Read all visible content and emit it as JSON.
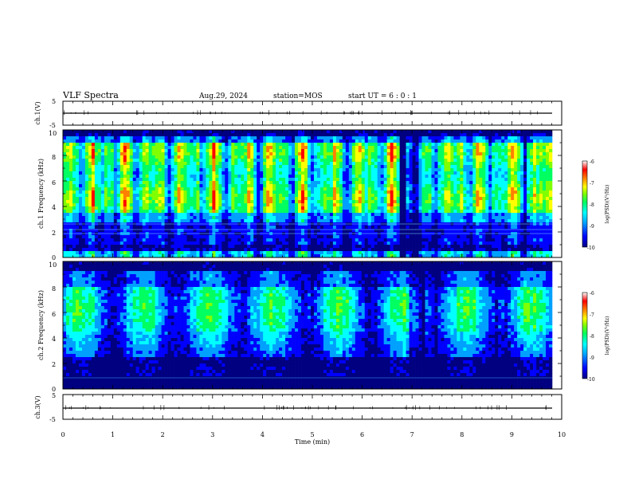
{
  "header": {
    "title": "VLF Spectra",
    "date": "Aug.29, 2024",
    "station": "station=MOS",
    "start_ut": "start UT = 6 : 0 : 1"
  },
  "chart_data": [
    {
      "type": "line",
      "name": "ch1-voltage",
      "ylabel": "ch.1(V)",
      "ylim": [
        -5,
        5
      ],
      "y_ticks": [
        "5",
        "-5"
      ],
      "xlim": [
        0,
        10
      ],
      "description_values": {
        "baseline": 0.0
      }
    },
    {
      "type": "heatmap",
      "name": "ch1-spectrogram",
      "ylabel": "ch.1 Frequency (kHz)",
      "ylim": [
        0,
        10
      ],
      "y_ticks": [
        "0",
        "2",
        "4",
        "6",
        "8",
        "10"
      ],
      "xlim": [
        0,
        10
      ],
      "colorbar": {
        "label": "log(PSD)(V²/Hz)",
        "range": [
          -10,
          -6
        ],
        "ticks": [
          "-6",
          "-7",
          "-8",
          "-9",
          "-10"
        ]
      }
    },
    {
      "type": "heatmap",
      "name": "ch2-spectrogram",
      "ylabel": "ch.2 Frequency (kHz)",
      "ylim": [
        0,
        10
      ],
      "y_ticks": [
        "0",
        "2",
        "4",
        "6",
        "8",
        "10"
      ],
      "xlim": [
        0,
        10
      ],
      "colorbar": {
        "label": "log(PSD)(V²/Hz)",
        "range": [
          -10,
          -6
        ],
        "ticks": [
          "-6",
          "-7",
          "-8",
          "-9",
          "-10"
        ]
      }
    },
    {
      "type": "line",
      "name": "ch3-voltage",
      "ylabel": "ch.3(V)",
      "ylim": [
        -5,
        5
      ],
      "y_ticks": [
        "5",
        "-5"
      ],
      "xlim": [
        0,
        10
      ],
      "description_values": {
        "baseline": 0.0
      }
    }
  ],
  "x_axis": {
    "label": "Time (min)",
    "ticks": [
      "0",
      "1",
      "2",
      "3",
      "4",
      "5",
      "6",
      "7",
      "8",
      "9",
      "10"
    ]
  },
  "colors": {
    "colormap": [
      "#000080",
      "#0000ff",
      "#00a0ff",
      "#00ffff",
      "#00ff60",
      "#80ff00",
      "#ffff00",
      "#ff8000",
      "#ff0000",
      "#ffffff"
    ]
  }
}
